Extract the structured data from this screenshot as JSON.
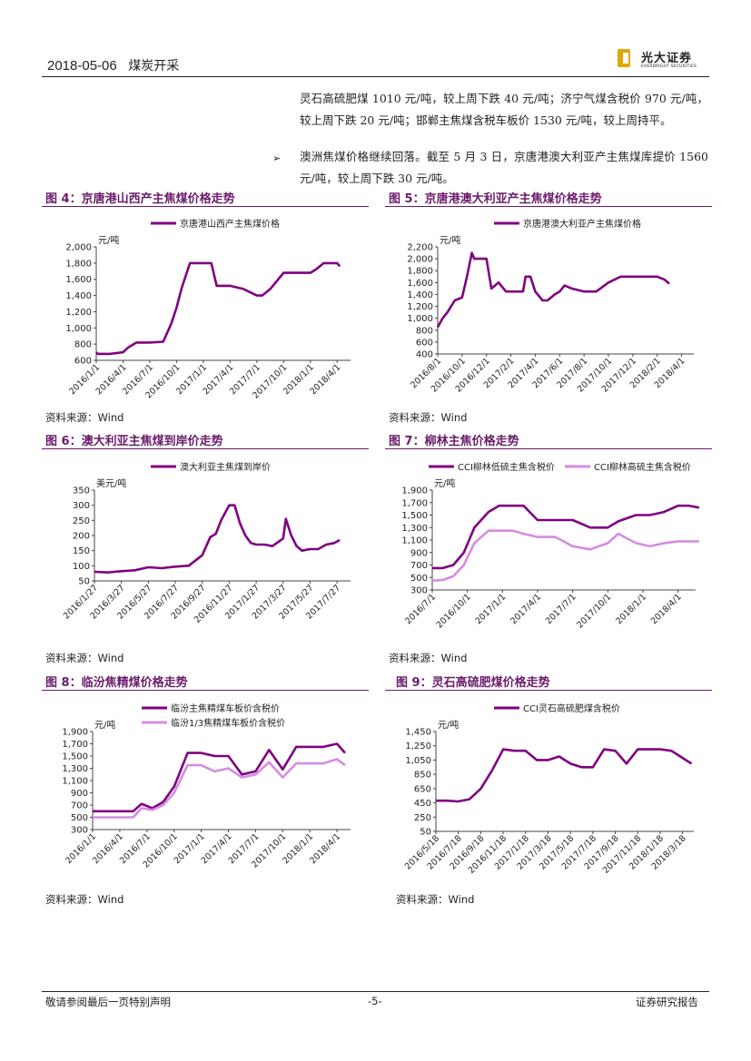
{
  "header": {
    "date": "2018-05-06",
    "section": "煤炭开采",
    "logo_cn": "光大证券",
    "logo_en": "EVERBRIGHT SECURITIES"
  },
  "body": {
    "para1": "灵石高硫肥煤 1010 元/吨，较上周下跌 40 元/吨；济宁气煤含税价 970 元/吨，较上周下跌 20 元/吨；邯郸主焦煤含税车板价 1530 元/吨，较上周持平。",
    "para2": "澳洲焦煤价格继续回落。截至 5 月 3 日，京唐港澳大利亚产主焦煤库提价 1560 元/吨，较上周下跌 30 元/吨。",
    "bullet": "➢"
  },
  "figures": [
    {
      "title": "图 4：京唐港山西产主焦煤价格走势",
      "source": "资料来源：Wind"
    },
    {
      "title": "图 5：京唐港澳大利亚产主焦煤价格走势",
      "source": "资料来源：Wind"
    },
    {
      "title": "图 6：澳大利亚主焦煤到岸价走势",
      "source": "资料来源：Wind"
    },
    {
      "title": "图 7：柳林主焦价格走势",
      "source": "资料来源：Wind"
    },
    {
      "title": "图 8：临汾焦精煤价格走势",
      "source": "资料来源：Wind"
    },
    {
      "title": "图 9：灵石高硫肥煤价格走势",
      "source": "资料来源：Wind"
    }
  ],
  "chart_data": [
    {
      "type": "line",
      "unit": "元/吨",
      "yticks": [
        600,
        800,
        1000,
        1200,
        1400,
        1600,
        1800,
        2000
      ],
      "ylim": [
        600,
        2000
      ],
      "categories": [
        "2016/1/1",
        "2016/4/1",
        "2016/7/1",
        "2016/10/1",
        "2017/1/1",
        "2017/4/1",
        "2017/7/1",
        "2017/10/1",
        "2018/1/1",
        "2018/4/1"
      ],
      "series": [
        {
          "name": "京唐港山西产主焦煤价格",
          "color": "#800080",
          "x": [
            0,
            0.05,
            0.5,
            1,
            1.2,
            1.5,
            2,
            2.5,
            2.8,
            3,
            3.2,
            3.5,
            3.9,
            4,
            4.3,
            4.5,
            4.9,
            5,
            5.5,
            6,
            6.2,
            6.5,
            7,
            7.3,
            7.5,
            8,
            8.2,
            8.5,
            8.8,
            9,
            9.1
          ],
          "values": [
            700,
            680,
            680,
            700,
            760,
            820,
            820,
            830,
            1050,
            1250,
            1500,
            1800,
            1800,
            1800,
            1800,
            1520,
            1520,
            1520,
            1480,
            1400,
            1400,
            1480,
            1680,
            1680,
            1680,
            1680,
            1720,
            1800,
            1800,
            1800,
            1760
          ]
        }
      ]
    },
    {
      "type": "line",
      "unit": "元/吨",
      "yticks": [
        400,
        600,
        800,
        1000,
        1200,
        1400,
        1600,
        1800,
        2000,
        2200
      ],
      "ylim": [
        400,
        2200
      ],
      "categories": [
        "2016/8/1",
        "2016/10/1",
        "2016/12/1",
        "2017/2/1",
        "2017/4/1",
        "2017/6/1",
        "2017/8/1",
        "2017/10/1",
        "2017/12/1",
        "2018/2/1",
        "2018/4/1"
      ],
      "series": [
        {
          "name": "京唐港澳大利亚产主焦煤价格",
          "color": "#800080",
          "x": [
            0,
            0.2,
            0.4,
            0.7,
            1,
            1.2,
            1.4,
            1.5,
            1.7,
            2,
            2.2,
            2.5,
            2.8,
            3.2,
            3.5,
            3.6,
            3.8,
            4,
            4.3,
            4.5,
            4.8,
            5,
            5.2,
            5.5,
            6,
            6.5,
            7,
            7.5,
            8,
            8.5,
            9,
            9.3,
            9.5
          ],
          "values": [
            850,
            1000,
            1100,
            1300,
            1350,
            1700,
            2100,
            2000,
            2000,
            2000,
            1500,
            1600,
            1450,
            1450,
            1450,
            1700,
            1700,
            1450,
            1300,
            1300,
            1400,
            1450,
            1550,
            1500,
            1450,
            1450,
            1600,
            1700,
            1700,
            1700,
            1700,
            1650,
            1580
          ]
        }
      ]
    },
    {
      "type": "line",
      "unit": "美元/吨",
      "yticks": [
        50,
        100,
        150,
        200,
        250,
        300,
        350
      ],
      "ylim": [
        50,
        350
      ],
      "categories": [
        "2016/1/27",
        "2016/3/27",
        "2016/5/27",
        "2016/7/27",
        "2016/9/27",
        "2016/11/27",
        "2017/1/27",
        "2017/3/27",
        "2017/5/27",
        "2017/7/27"
      ],
      "series": [
        {
          "name": "澳大利亚主焦煤到岸价",
          "color": "#800080",
          "x": [
            0,
            0.5,
            1,
            1.5,
            2,
            2.5,
            3,
            3.5,
            4,
            4.3,
            4.5,
            4.7,
            5,
            5.2,
            5.4,
            5.6,
            5.8,
            6,
            6.3,
            6.6,
            7,
            7.1,
            7.3,
            7.5,
            7.7,
            8,
            8.3,
            8.6,
            8.9,
            9.1
          ],
          "values": [
            80,
            78,
            82,
            85,
            95,
            92,
            97,
            100,
            135,
            195,
            205,
            250,
            300,
            300,
            240,
            200,
            175,
            170,
            170,
            165,
            190,
            255,
            200,
            165,
            150,
            155,
            155,
            170,
            175,
            185
          ]
        }
      ]
    },
    {
      "type": "line",
      "unit": "元/吨",
      "yticks": [
        300,
        500,
        700,
        900,
        1100,
        1300,
        1500,
        1700,
        1900
      ],
      "ylim": [
        300,
        1900
      ],
      "categories": [
        "2016/7/1",
        "2016/10/1",
        "2017/1/1",
        "2017/4/1",
        "2017/7/1",
        "2017/10/1",
        "2018/1/1",
        "2018/4/1"
      ],
      "series": [
        {
          "name": "CCI柳林低硫主焦含税价",
          "color": "#800080",
          "x": [
            0,
            0.3,
            0.6,
            0.9,
            1.2,
            1.6,
            1.9,
            2.3,
            2.6,
            3,
            3.5,
            4,
            4.5,
            5,
            5.3,
            5.8,
            6.2,
            6.6,
            7,
            7.3,
            7.6
          ],
          "values": [
            650,
            650,
            700,
            900,
            1300,
            1550,
            1650,
            1650,
            1650,
            1420,
            1420,
            1420,
            1300,
            1300,
            1400,
            1500,
            1500,
            1550,
            1650,
            1650,
            1620
          ]
        },
        {
          "name": "CCI柳林高硫主焦含税价",
          "color": "#d58ce2",
          "x": [
            0,
            0.3,
            0.6,
            0.9,
            1.2,
            1.6,
            1.9,
            2.3,
            2.6,
            3,
            3.5,
            4,
            4.5,
            5,
            5.3,
            5.8,
            6.2,
            6.6,
            7,
            7.3,
            7.6
          ],
          "values": [
            450,
            460,
            520,
            700,
            1050,
            1250,
            1250,
            1250,
            1200,
            1150,
            1150,
            1000,
            950,
            1050,
            1200,
            1050,
            1000,
            1050,
            1080,
            1080,
            1080
          ]
        }
      ]
    },
    {
      "type": "line",
      "unit": "元/吨",
      "yticks": [
        300,
        500,
        700,
        900,
        1100,
        1300,
        1500,
        1700,
        1900
      ],
      "ylim": [
        300,
        1900
      ],
      "categories": [
        "2016/1/1",
        "2016/4/1",
        "2016/7/1",
        "2016/10/1",
        "2017/1/1",
        "2017/4/1",
        "2017/7/1",
        "2017/10/1",
        "2018/1/1",
        "2018/4/1"
      ],
      "series": [
        {
          "name": "临汾主焦精煤车板价含税价",
          "color": "#800080",
          "x": [
            0,
            0.5,
            1,
            1.5,
            1.8,
            2.2,
            2.6,
            3,
            3.5,
            4,
            4.5,
            5,
            5.5,
            6,
            6.5,
            7,
            7.5,
            8,
            8.5,
            9,
            9.3
          ],
          "values": [
            600,
            600,
            600,
            600,
            720,
            650,
            750,
            1000,
            1550,
            1550,
            1500,
            1500,
            1200,
            1250,
            1600,
            1280,
            1650,
            1650,
            1650,
            1700,
            1550
          ]
        },
        {
          "name": "临汾1/3焦精煤车板价含税价",
          "color": "#d58ce2",
          "x": [
            0,
            0.5,
            1,
            1.5,
            1.8,
            2.2,
            2.6,
            3,
            3.5,
            4,
            4.5,
            5,
            5.5,
            6,
            6.5,
            7,
            7.5,
            8,
            8.5,
            9,
            9.3
          ],
          "values": [
            500,
            500,
            500,
            500,
            650,
            620,
            700,
            900,
            1350,
            1350,
            1250,
            1300,
            1150,
            1200,
            1400,
            1150,
            1380,
            1380,
            1380,
            1450,
            1350
          ]
        }
      ]
    },
    {
      "type": "line",
      "unit": "元/吨",
      "yticks": [
        50,
        250,
        450,
        650,
        850,
        1050,
        1250,
        1450
      ],
      "ylim": [
        50,
        1450
      ],
      "categories": [
        "2016/5/18",
        "2016/7/18",
        "2016/9/18",
        "2016/11/18",
        "2017/1/18",
        "2017/3/18",
        "2017/5/18",
        "2017/7/18",
        "2017/9/18",
        "2017/11/18",
        "2018/1/18",
        "2018/3/18"
      ],
      "series": [
        {
          "name": "CCI灵石高硫肥煤含税价",
          "color": "#800080",
          "x": [
            0,
            0.5,
            1,
            1.5,
            2,
            2.5,
            3,
            3.5,
            4,
            4.5,
            5,
            5.5,
            6,
            6.5,
            7,
            7.5,
            8,
            8.5,
            9,
            9.5,
            10,
            10.5,
            11,
            11.4
          ],
          "values": [
            480,
            480,
            470,
            500,
            650,
            900,
            1200,
            1180,
            1180,
            1050,
            1050,
            1100,
            1000,
            950,
            950,
            1200,
            1180,
            1000,
            1200,
            1200,
            1200,
            1180,
            1080,
            1000
          ]
        }
      ]
    }
  ]
}
